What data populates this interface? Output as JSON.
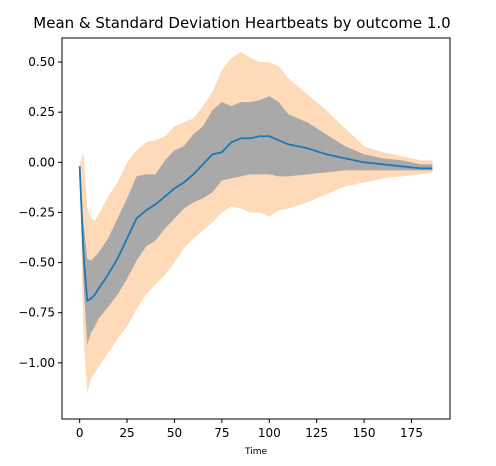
{
  "chart_data": {
    "type": "area",
    "title": "Mean & Standard Deviation Heartbeats by outcome 1.0",
    "xlabel": "Time",
    "ylabel": "",
    "xlim": [
      -9.3,
      195.3
    ],
    "ylim": [
      -1.28,
      0.62
    ],
    "xticks": [
      0,
      25,
      50,
      75,
      100,
      125,
      150,
      175
    ],
    "yticks": [
      -1.0,
      -0.75,
      -0.5,
      -0.25,
      0.0,
      0.25,
      0.5
    ],
    "colors": {
      "mean": "#1f77b4",
      "std1": "#a9a9a9",
      "std2": "#ffdab9"
    },
    "series": [
      {
        "role": "mean",
        "x": [
          0,
          2,
          4,
          6,
          8,
          10,
          15,
          20,
          25,
          30,
          35,
          40,
          45,
          50,
          55,
          60,
          65,
          70,
          75,
          80,
          85,
          90,
          95,
          100,
          105,
          110,
          120,
          130,
          140,
          150,
          160,
          170,
          180,
          186
        ],
        "y": [
          -0.02,
          -0.45,
          -0.69,
          -0.68,
          -0.66,
          -0.63,
          -0.56,
          -0.48,
          -0.38,
          -0.28,
          -0.24,
          -0.21,
          -0.17,
          -0.13,
          -0.1,
          -0.06,
          -0.01,
          0.04,
          0.05,
          0.1,
          0.12,
          0.12,
          0.13,
          0.13,
          0.11,
          0.09,
          0.07,
          0.04,
          0.02,
          0.0,
          -0.01,
          -0.02,
          -0.03,
          -0.03
        ]
      },
      {
        "role": "std1",
        "x": [
          0,
          2,
          4,
          6,
          8,
          10,
          15,
          20,
          25,
          30,
          35,
          40,
          45,
          50,
          55,
          60,
          65,
          70,
          75,
          80,
          85,
          90,
          95,
          100,
          105,
          110,
          120,
          130,
          140,
          150,
          160,
          170,
          180,
          186
        ],
        "upper": [
          -0.02,
          -0.3,
          -0.48,
          -0.49,
          -0.47,
          -0.45,
          -0.38,
          -0.28,
          -0.18,
          -0.07,
          -0.06,
          -0.06,
          0.01,
          0.06,
          0.08,
          0.14,
          0.18,
          0.26,
          0.3,
          0.28,
          0.3,
          0.3,
          0.31,
          0.33,
          0.3,
          0.24,
          0.2,
          0.14,
          0.08,
          0.04,
          0.02,
          0.01,
          -0.01,
          -0.01
        ],
        "lower": [
          -0.02,
          -0.6,
          -0.91,
          -0.85,
          -0.82,
          -0.78,
          -0.72,
          -0.66,
          -0.58,
          -0.49,
          -0.42,
          -0.39,
          -0.33,
          -0.28,
          -0.23,
          -0.2,
          -0.18,
          -0.15,
          -0.09,
          -0.08,
          -0.07,
          -0.06,
          -0.06,
          -0.06,
          -0.07,
          -0.07,
          -0.06,
          -0.05,
          -0.04,
          -0.04,
          -0.04,
          -0.04,
          -0.04,
          -0.04
        ]
      },
      {
        "role": "std2",
        "x": [
          0,
          2,
          4,
          6,
          8,
          10,
          15,
          20,
          25,
          30,
          35,
          40,
          45,
          50,
          55,
          60,
          65,
          70,
          75,
          80,
          85,
          90,
          95,
          100,
          105,
          110,
          120,
          130,
          140,
          150,
          160,
          170,
          180,
          186
        ],
        "upper": [
          -0.01,
          0.05,
          -0.22,
          -0.28,
          -0.29,
          -0.26,
          -0.17,
          -0.1,
          0.0,
          0.06,
          0.1,
          0.11,
          0.13,
          0.18,
          0.2,
          0.22,
          0.28,
          0.35,
          0.46,
          0.52,
          0.55,
          0.52,
          0.5,
          0.5,
          0.48,
          0.42,
          0.34,
          0.26,
          0.17,
          0.08,
          0.05,
          0.03,
          0.01,
          0.01
        ],
        "lower": [
          -0.03,
          -0.85,
          -1.15,
          -1.08,
          -1.05,
          -1.02,
          -0.95,
          -0.88,
          -0.82,
          -0.73,
          -0.66,
          -0.61,
          -0.56,
          -0.5,
          -0.43,
          -0.38,
          -0.34,
          -0.3,
          -0.25,
          -0.22,
          -0.23,
          -0.25,
          -0.25,
          -0.27,
          -0.24,
          -0.23,
          -0.2,
          -0.16,
          -0.12,
          -0.1,
          -0.08,
          -0.07,
          -0.06,
          -0.05
        ]
      }
    ]
  }
}
